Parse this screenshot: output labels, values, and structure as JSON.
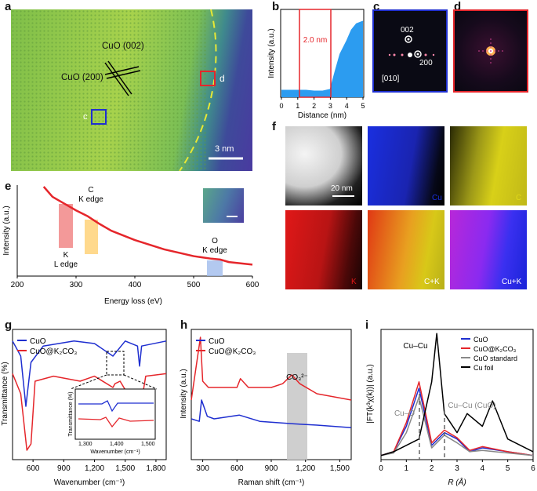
{
  "panels": {
    "a": {
      "label": "a",
      "cuo002": "CuO (002)",
      "cuo200": "CuO (200)",
      "box_c": "c",
      "box_d": "d",
      "scale": "3 nm"
    },
    "b": {
      "label": "b",
      "ylabel": "Intensity (a.u.)",
      "xlabel": "Distance (nm)",
      "annot": "2.0 nm",
      "xticks": [
        "0",
        "1",
        "2",
        "3",
        "4",
        "5"
      ]
    },
    "c": {
      "label": "c",
      "spot002": "002",
      "spot200": "200",
      "zone": "[010]"
    },
    "d": {
      "label": "d"
    },
    "e": {
      "label": "e",
      "ylabel": "Intensity (a.u.)",
      "xlabel": "Energy loss (eV)",
      "xticks": [
        "200",
        "300",
        "400",
        "500",
        "600"
      ],
      "c_edge_1": "C",
      "c_edge_2": "K edge",
      "k_edge_1": "K",
      "k_edge_2": "L edge",
      "o_edge_1": "O",
      "o_edge_2": "K edge"
    },
    "f": {
      "label": "f",
      "scale": "20 nm",
      "maps": [
        "Cu",
        "C",
        "K",
        "C+K",
        "Cu+K"
      ]
    },
    "g": {
      "label": "g",
      "ylabel": "Transmittance (%)",
      "xlabel": "Wavenumber (cm⁻¹)",
      "xticks": [
        "600",
        "900",
        "1,200",
        "1,500",
        "1,800"
      ],
      "legend": [
        "CuO",
        "CuO@K₂CO₃"
      ],
      "inset_ylabel": "Transmittance (%)",
      "inset_xlabel": "Wavenumber (cm⁻¹)",
      "inset_xticks": [
        "1,300",
        "1,400",
        "1,500"
      ]
    },
    "h": {
      "label": "h",
      "ylabel": "Intensity (a.u.)",
      "xlabel": "Raman shift (cm⁻¹)",
      "xticks": [
        "300",
        "600",
        "900",
        "1,200",
        "1,500"
      ],
      "legend": [
        "CuO",
        "CuO@K₂CO₃"
      ],
      "annot": "CO₃²⁻"
    },
    "i": {
      "label": "i",
      "ylabel": "|FT(k³χ(k))| (a.u.)",
      "xlabel": "R (Å)",
      "xticks": [
        "0",
        "1",
        "2",
        "3",
        "4",
        "5",
        "6"
      ],
      "legend": [
        "CuO",
        "CuO@K₂CO₃",
        "CuO standard",
        "Cu foil"
      ],
      "annot_cucu": "Cu–Cu",
      "annot_cuo": "Cu–O",
      "annot_cucu_cuo": "Cu–Cu (CuO)"
    }
  },
  "colors": {
    "blue": "#1f2fd0",
    "red": "#e5262b",
    "grey": "#888888",
    "black": "#000000",
    "mapblue": "#1a2fe0",
    "mapyellow": "#d8d018",
    "mapred": "#e01818"
  },
  "chart_data": [
    {
      "panel": "b",
      "type": "area",
      "xlabel": "Distance (nm)",
      "ylabel": "Intensity (a.u.)",
      "xlim": [
        0,
        5
      ],
      "series": [
        {
          "x": [
            0,
            0.5,
            1.0,
            1.5,
            2.0,
            2.5,
            3.0,
            3.3,
            3.6,
            4.0,
            4.3,
            4.6,
            5.0
          ],
          "values": [
            0.08,
            0.08,
            0.08,
            0.08,
            0.07,
            0.07,
            0.09,
            0.3,
            0.5,
            0.65,
            0.78,
            0.85,
            0.88
          ]
        }
      ]
    },
    {
      "panel": "e",
      "type": "line",
      "xlabel": "Energy loss (eV)",
      "ylabel": "Intensity (a.u.)",
      "xlim": [
        200,
        600
      ],
      "series": [
        {
          "x": [
            245,
            260,
            280,
            300,
            320,
            340,
            360,
            400,
            450,
            500,
            530,
            545,
            560,
            600
          ],
          "values": [
            1.0,
            0.88,
            0.8,
            0.72,
            0.65,
            0.56,
            0.48,
            0.37,
            0.26,
            0.18,
            0.15,
            0.14,
            0.11,
            0.08
          ]
        }
      ]
    },
    {
      "panel": "g",
      "type": "line",
      "xlabel": "Wavenumber (cm⁻¹)",
      "ylabel": "Transmittance (%)",
      "xlim": [
        400,
        1900
      ],
      "series": [
        {
          "name": "CuO",
          "x": [
            400,
            480,
            530,
            580,
            700,
            1000,
            1200,
            1380,
            1500,
            1620,
            1640,
            1660,
            1900
          ],
          "values": [
            0.92,
            0.8,
            0.4,
            0.75,
            0.88,
            0.92,
            0.9,
            0.8,
            0.92,
            0.88,
            0.72,
            0.88,
            0.92
          ]
        },
        {
          "name": "CuO@K₂CO₃",
          "x": [
            400,
            480,
            540,
            580,
            620,
            800,
            1060,
            1200,
            1380,
            1400,
            1450,
            1640,
            1700,
            1900
          ],
          "values": [
            0.66,
            0.5,
            0.05,
            0.1,
            0.6,
            0.64,
            0.6,
            0.64,
            0.55,
            0.58,
            0.6,
            0.34,
            0.64,
            0.66
          ]
        }
      ]
    },
    {
      "panel": "h",
      "type": "line",
      "xlabel": "Raman shift (cm⁻¹)",
      "ylabel": "Intensity (a.u.)",
      "xlim": [
        200,
        1600
      ],
      "series": [
        {
          "name": "CuO",
          "x": [
            200,
            270,
            290,
            340,
            400,
            620,
            800,
            1100,
            1300,
            1600
          ],
          "values": [
            0.3,
            0.28,
            0.45,
            0.32,
            0.3,
            0.33,
            0.28,
            0.26,
            0.25,
            0.23
          ]
        },
        {
          "name": "CuO@K₂CO₃",
          "x": [
            200,
            280,
            300,
            350,
            600,
            630,
            700,
            900,
            1000,
            1080,
            1150,
            1300,
            1600
          ],
          "values": [
            0.45,
            0.95,
            0.6,
            0.55,
            0.55,
            0.62,
            0.55,
            0.55,
            0.58,
            0.65,
            0.58,
            0.5,
            0.45
          ]
        }
      ]
    },
    {
      "panel": "i",
      "type": "line",
      "xlabel": "R (Å)",
      "ylabel": "|FT(k³χ(k))| (a.u.)",
      "xlim": [
        0,
        6
      ],
      "series": [
        {
          "name": "CuO",
          "x": [
            0,
            0.5,
            1.0,
            1.5,
            2.0,
            2.5,
            3.0,
            3.5,
            4.0,
            5.0,
            6.0
          ],
          "values": [
            0.02,
            0.05,
            0.25,
            0.55,
            0.1,
            0.2,
            0.15,
            0.05,
            0.08,
            0.05,
            0.02
          ]
        },
        {
          "name": "CuO@K₂CO₃",
          "x": [
            0,
            0.5,
            1.0,
            1.5,
            2.0,
            2.5,
            3.0,
            3.5,
            4.0,
            5.0,
            6.0
          ],
          "values": [
            0.02,
            0.05,
            0.28,
            0.6,
            0.12,
            0.22,
            0.16,
            0.06,
            0.09,
            0.05,
            0.02
          ]
        },
        {
          "name": "CuO standard",
          "x": [
            0,
            0.5,
            1.0,
            1.5,
            2.0,
            2.5,
            3.0,
            3.5,
            4.0,
            5.0,
            6.0
          ],
          "values": [
            0.02,
            0.04,
            0.2,
            0.48,
            0.08,
            0.18,
            0.12,
            0.05,
            0.06,
            0.04,
            0.02
          ]
        },
        {
          "name": "Cu foil",
          "x": [
            0,
            0.5,
            1.0,
            1.5,
            2.0,
            2.2,
            2.5,
            3.0,
            3.4,
            4.0,
            4.4,
            4.7,
            5.0,
            6.0
          ],
          "values": [
            0.02,
            0.05,
            0.1,
            0.15,
            0.6,
            0.98,
            0.35,
            0.2,
            0.35,
            0.25,
            0.45,
            0.3,
            0.15,
            0.05
          ]
        }
      ]
    }
  ]
}
